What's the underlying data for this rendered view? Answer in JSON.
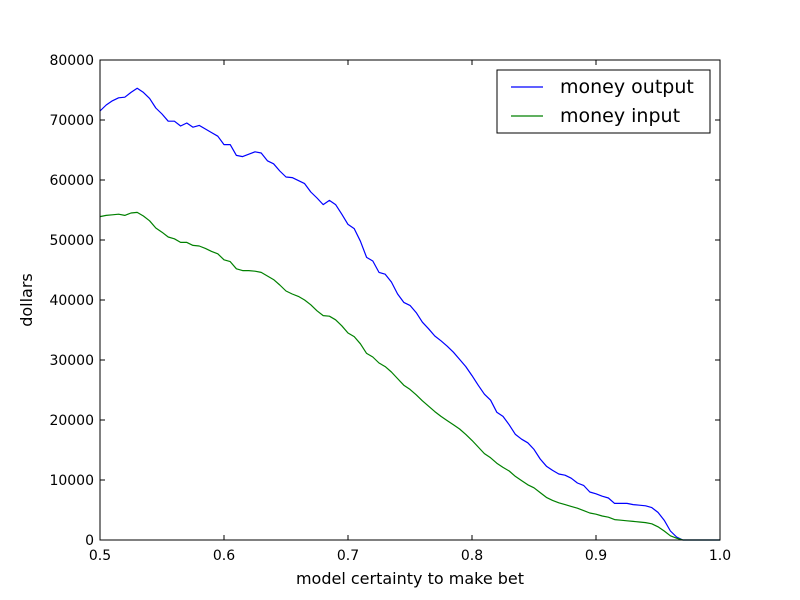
{
  "chart_data": {
    "type": "line",
    "title": "",
    "xlabel": "model certainty to make bet",
    "ylabel": "dollars",
    "xlim": [
      0.5,
      1.0
    ],
    "ylim": [
      0,
      80000
    ],
    "xticks": [
      0.5,
      0.6,
      0.7,
      0.8,
      0.9,
      1.0
    ],
    "xtick_labels": [
      "0.5",
      "0.6",
      "0.7",
      "0.8",
      "0.9",
      "1.0"
    ],
    "yticks": [
      0,
      10000,
      20000,
      30000,
      40000,
      50000,
      60000,
      70000,
      80000
    ],
    "ytick_labels": [
      "0",
      "10000",
      "20000",
      "30000",
      "40000",
      "50000",
      "60000",
      "70000",
      "80000"
    ],
    "grid": false,
    "legend_position": "top-right",
    "series": [
      {
        "name": "money output",
        "color": "#0000ff",
        "x": [
          0.5,
          0.505,
          0.51,
          0.515,
          0.52,
          0.525,
          0.53,
          0.535,
          0.54,
          0.545,
          0.55,
          0.555,
          0.56,
          0.565,
          0.57,
          0.575,
          0.58,
          0.585,
          0.59,
          0.595,
          0.6,
          0.605,
          0.61,
          0.615,
          0.62,
          0.625,
          0.63,
          0.635,
          0.64,
          0.645,
          0.65,
          0.655,
          0.66,
          0.665,
          0.67,
          0.675,
          0.68,
          0.685,
          0.69,
          0.695,
          0.7,
          0.705,
          0.71,
          0.715,
          0.72,
          0.725,
          0.73,
          0.735,
          0.74,
          0.745,
          0.75,
          0.755,
          0.76,
          0.765,
          0.77,
          0.775,
          0.78,
          0.785,
          0.79,
          0.795,
          0.8,
          0.805,
          0.81,
          0.815,
          0.82,
          0.825,
          0.83,
          0.835,
          0.84,
          0.845,
          0.85,
          0.855,
          0.86,
          0.865,
          0.87,
          0.875,
          0.88,
          0.885,
          0.89,
          0.895,
          0.9,
          0.905,
          0.91,
          0.915,
          0.92,
          0.925,
          0.93,
          0.935,
          0.94,
          0.945,
          0.95,
          0.955,
          0.96,
          0.965,
          0.97,
          0.975,
          0.98,
          0.985,
          0.99,
          0.995,
          1.0
        ],
        "values": [
          71500,
          72500,
          73200,
          73700,
          73800,
          74600,
          75300,
          74600,
          73600,
          72000,
          71000,
          69800,
          69800,
          69000,
          69500,
          68800,
          69100,
          68500,
          67900,
          67300,
          65900,
          65900,
          64100,
          63900,
          64300,
          64700,
          64500,
          63200,
          62700,
          61500,
          60500,
          60400,
          59900,
          59400,
          58000,
          57000,
          55900,
          56600,
          55900,
          54300,
          52600,
          51900,
          49800,
          47100,
          46500,
          44600,
          44300,
          43000,
          41000,
          39600,
          39100,
          37900,
          36300,
          35200,
          34000,
          33200,
          32300,
          31300,
          30100,
          28900,
          27400,
          25800,
          24300,
          23300,
          21300,
          20600,
          19200,
          17600,
          16800,
          16200,
          15100,
          13500,
          12300,
          11600,
          11000,
          10800,
          10300,
          9500,
          9100,
          8000,
          7700,
          7300,
          7000,
          6100,
          6100,
          6100,
          5900,
          5800,
          5700,
          5400,
          4600,
          3300,
          1500,
          500,
          0,
          0,
          0,
          0,
          0,
          0,
          0
        ]
      },
      {
        "name": "money input",
        "color": "#008000",
        "x": [
          0.5,
          0.505,
          0.51,
          0.515,
          0.52,
          0.525,
          0.53,
          0.535,
          0.54,
          0.545,
          0.55,
          0.555,
          0.56,
          0.565,
          0.57,
          0.575,
          0.58,
          0.585,
          0.59,
          0.595,
          0.6,
          0.605,
          0.61,
          0.615,
          0.62,
          0.625,
          0.63,
          0.635,
          0.64,
          0.645,
          0.65,
          0.655,
          0.66,
          0.665,
          0.67,
          0.675,
          0.68,
          0.685,
          0.69,
          0.695,
          0.7,
          0.705,
          0.71,
          0.715,
          0.72,
          0.725,
          0.73,
          0.735,
          0.74,
          0.745,
          0.75,
          0.755,
          0.76,
          0.765,
          0.77,
          0.775,
          0.78,
          0.785,
          0.79,
          0.795,
          0.8,
          0.805,
          0.81,
          0.815,
          0.82,
          0.825,
          0.83,
          0.835,
          0.84,
          0.845,
          0.85,
          0.855,
          0.86,
          0.865,
          0.87,
          0.875,
          0.88,
          0.885,
          0.89,
          0.895,
          0.9,
          0.905,
          0.91,
          0.915,
          0.92,
          0.925,
          0.93,
          0.935,
          0.94,
          0.945,
          0.95,
          0.955,
          0.96,
          0.965,
          0.97,
          0.975,
          0.98,
          0.985,
          0.99,
          0.995,
          1.0
        ],
        "values": [
          53900,
          54100,
          54200,
          54300,
          54100,
          54500,
          54600,
          54000,
          53200,
          52000,
          51300,
          50500,
          50200,
          49600,
          49600,
          49100,
          49000,
          48600,
          48100,
          47700,
          46700,
          46400,
          45200,
          44900,
          44900,
          44800,
          44600,
          44000,
          43400,
          42500,
          41500,
          41000,
          40600,
          40000,
          39200,
          38200,
          37400,
          37300,
          36700,
          35700,
          34500,
          33900,
          32700,
          31100,
          30500,
          29500,
          28900,
          28000,
          26900,
          25800,
          25100,
          24200,
          23200,
          22300,
          21400,
          20600,
          19900,
          19200,
          18500,
          17600,
          16600,
          15500,
          14400,
          13700,
          12800,
          12100,
          11500,
          10600,
          9900,
          9200,
          8700,
          7900,
          7100,
          6600,
          6200,
          5900,
          5600,
          5300,
          4900,
          4500,
          4300,
          4000,
          3800,
          3400,
          3300,
          3200,
          3100,
          3000,
          2900,
          2700,
          2200,
          1500,
          700,
          300,
          0,
          0,
          0,
          0,
          0,
          0,
          0
        ]
      }
    ]
  }
}
